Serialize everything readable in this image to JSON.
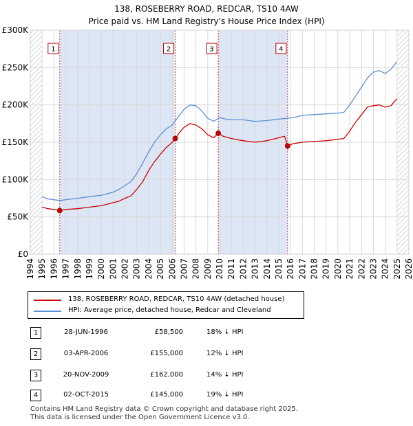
{
  "title_line1": "138, ROSEBERRY ROAD, REDCAR, TS10 4AW",
  "title_line2": "Price paid vs. HM Land Registry's House Price Index (HPI)",
  "colors": {
    "property": "#cc0000",
    "hpi": "#5b8fd4",
    "band": "#dde6f4",
    "marker_line": "#dd3344"
  },
  "chart_data": {
    "type": "line",
    "ylim": [
      0,
      300000
    ],
    "xlim": [
      1994,
      2026
    ],
    "y_ticks": [
      0,
      50000,
      100000,
      150000,
      200000,
      250000,
      300000
    ],
    "y_tick_labels": [
      "£0",
      "£50K",
      "£100K",
      "£150K",
      "£200K",
      "£250K",
      "£300K"
    ],
    "x_ticks": [
      1994,
      1995,
      1996,
      1997,
      1998,
      1999,
      2000,
      2001,
      2002,
      2003,
      2004,
      2005,
      2006,
      2007,
      2008,
      2009,
      2010,
      2011,
      2012,
      2013,
      2014,
      2015,
      2016,
      2017,
      2018,
      2019,
      2020,
      2021,
      2022,
      2023,
      2024,
      2025,
      2026
    ],
    "x_tick_labels": [
      "1994",
      "1995",
      "1996",
      "1997",
      "1998",
      "1999",
      "2000",
      "2001",
      "2002",
      "2003",
      "2004",
      "2005",
      "2006",
      "2007",
      "2008",
      "2009",
      "2010",
      "2011",
      "2012",
      "2013",
      "2014",
      "2015",
      "2016",
      "2017",
      "2018",
      "2019",
      "2020",
      "2021",
      "2022",
      "2023",
      "2024",
      "2025",
      "2026"
    ],
    "hatched_regions": [
      [
        1994,
        1995
      ],
      [
        2025,
        2026
      ]
    ],
    "series": [
      {
        "name": "138, ROSEBERRY ROAD, REDCAR, TS10 4AW (detached house)",
        "key": "property",
        "x": [
          1995.0,
          1995.5,
          1996.0,
          1996.5,
          1997.0,
          1998.0,
          1999.0,
          2000.0,
          2001.0,
          2001.5,
          2002.0,
          2002.5,
          2003.0,
          2003.5,
          2004.0,
          2004.5,
          2005.0,
          2005.5,
          2006.0,
          2006.27,
          2006.6,
          2007.0,
          2007.5,
          2008.0,
          2008.5,
          2009.0,
          2009.5,
          2009.89,
          2010.3,
          2011.0,
          2012.0,
          2013.0,
          2014.0,
          2015.0,
          2015.5,
          2015.75,
          2016.2,
          2017.0,
          2018.0,
          2019.0,
          2020.0,
          2020.5,
          2021.0,
          2021.5,
          2022.0,
          2022.5,
          2023.0,
          2023.5,
          2024.0,
          2024.5,
          2024.8,
          2025.0
        ],
        "y": [
          63000,
          61000,
          60000,
          58500,
          60000,
          61000,
          63000,
          65000,
          69000,
          71000,
          75000,
          78000,
          87000,
          97000,
          112000,
          124000,
          134000,
          143000,
          150000,
          155000,
          163000,
          170000,
          175000,
          173000,
          168000,
          160000,
          156000,
          162000,
          158000,
          155000,
          152000,
          150000,
          152000,
          156000,
          158000,
          145000,
          148000,
          150000,
          151000,
          152000,
          154000,
          155000,
          165000,
          177000,
          187000,
          197000,
          199000,
          200000,
          197000,
          199000,
          205000,
          208000
        ]
      },
      {
        "name": "HPI: Average price, detached house, Redcar and Cleveland",
        "key": "hpi",
        "x": [
          1995.0,
          1995.5,
          1996.0,
          1996.5,
          1997.0,
          1998.0,
          1999.0,
          2000.0,
          2001.0,
          2001.5,
          2002.0,
          2002.5,
          2003.0,
          2003.5,
          2004.0,
          2004.5,
          2005.0,
          2005.5,
          2006.0,
          2006.5,
          2007.0,
          2007.5,
          2008.0,
          2008.5,
          2009.0,
          2009.5,
          2010.0,
          2010.5,
          2011.0,
          2012.0,
          2013.0,
          2014.0,
          2015.0,
          2015.75,
          2016.5,
          2017.0,
          2018.0,
          2019.0,
          2020.0,
          2020.5,
          2021.0,
          2021.5,
          2022.0,
          2022.5,
          2023.0,
          2023.5,
          2024.0,
          2024.5,
          2025.0
        ],
        "y": [
          77000,
          74000,
          73000,
          72000,
          73000,
          75000,
          77000,
          79000,
          83000,
          87000,
          92000,
          97000,
          108000,
          122000,
          137000,
          150000,
          160000,
          168000,
          173000,
          184000,
          194000,
          200000,
          199000,
          192000,
          182000,
          178000,
          183000,
          181000,
          180000,
          180000,
          178000,
          179000,
          181000,
          182000,
          184000,
          186000,
          187000,
          188000,
          189000,
          190000,
          200000,
          212000,
          224000,
          236000,
          244000,
          246000,
          242000,
          248000,
          258000
        ]
      }
    ],
    "markers": [
      {
        "label": "1",
        "x": 1996.49,
        "y": 58500
      },
      {
        "label": "2",
        "x": 2006.25,
        "y": 155000
      },
      {
        "label": "3",
        "x": 2009.89,
        "y": 162000
      },
      {
        "label": "4",
        "x": 2015.75,
        "y": 145000
      }
    ]
  },
  "legend": {
    "property_label": "138, ROSEBERRY ROAD, REDCAR, TS10 4AW (detached house)",
    "hpi_label": "HPI: Average price, detached house, Redcar and Cleveland"
  },
  "transactions": [
    {
      "num": "1",
      "date": "28-JUN-1996",
      "price": "£58,500",
      "hpi": "18% ↓ HPI"
    },
    {
      "num": "2",
      "date": "03-APR-2006",
      "price": "£155,000",
      "hpi": "12% ↓ HPI"
    },
    {
      "num": "3",
      "date": "20-NOV-2009",
      "price": "£162,000",
      "hpi": "14% ↓ HPI"
    },
    {
      "num": "4",
      "date": "02-OCT-2015",
      "price": "£145,000",
      "hpi": "19% ↓ HPI"
    }
  ],
  "footer_line1": "Contains HM Land Registry data © Crown copyright and database right 2025.",
  "footer_line2": "This data is licensed under the Open Government Licence v3.0."
}
